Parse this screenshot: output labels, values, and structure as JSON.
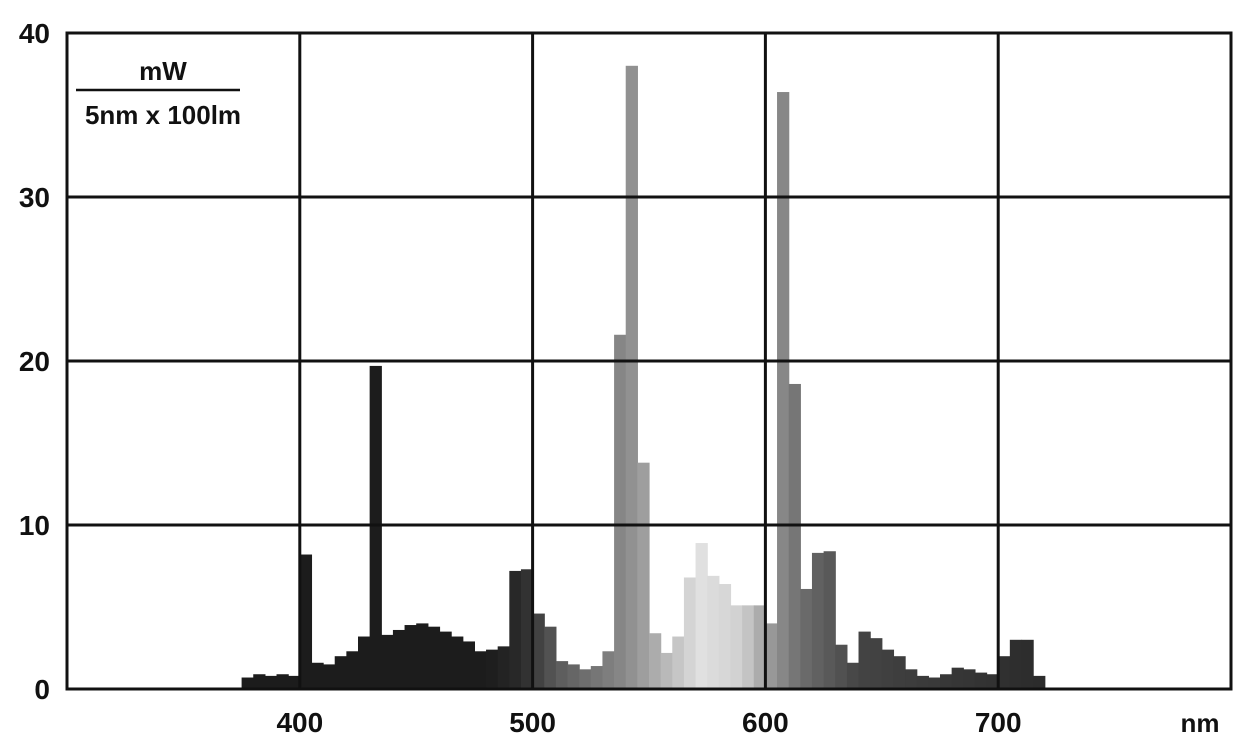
{
  "chart_data": {
    "type": "bar",
    "ylabel_numerator": "mW",
    "ylabel_denominator": "5nm x 100lm",
    "x_unit": "nm",
    "bin_width": 5,
    "xlim": [
      300,
      800
    ],
    "ylim": [
      0,
      40
    ],
    "x_ticks": [
      400,
      500,
      600,
      700
    ],
    "y_ticks": [
      0,
      10,
      20,
      30,
      40
    ],
    "grid": true,
    "legend": "none",
    "x": [
      375,
      380,
      385,
      390,
      395,
      400,
      405,
      410,
      415,
      420,
      425,
      430,
      435,
      440,
      445,
      450,
      455,
      460,
      465,
      470,
      475,
      480,
      485,
      490,
      495,
      500,
      505,
      510,
      515,
      520,
      525,
      530,
      535,
      540,
      545,
      550,
      555,
      560,
      565,
      570,
      575,
      580,
      585,
      590,
      595,
      600,
      605,
      610,
      615,
      620,
      625,
      630,
      635,
      640,
      645,
      650,
      655,
      660,
      665,
      670,
      675,
      680,
      685,
      690,
      695,
      700,
      705,
      710,
      715
    ],
    "values": [
      0.7,
      0.9,
      0.8,
      0.9,
      0.8,
      8.2,
      1.6,
      1.5,
      2.0,
      2.3,
      3.2,
      19.7,
      3.3,
      3.6,
      3.9,
      4.0,
      3.8,
      3.5,
      3.2,
      2.9,
      2.3,
      2.4,
      2.6,
      7.2,
      7.3,
      4.6,
      3.8,
      1.7,
      1.5,
      1.2,
      1.4,
      2.3,
      21.6,
      38.0,
      13.8,
      3.4,
      2.2,
      3.2,
      6.8,
      8.9,
      6.9,
      6.4,
      5.1,
      5.1,
      5.1,
      4.0,
      36.4,
      18.6,
      6.1,
      8.3,
      8.4,
      2.7,
      1.6,
      3.5,
      3.1,
      2.4,
      2.0,
      1.2,
      0.8,
      0.7,
      0.9,
      1.3,
      1.2,
      1.0,
      0.9,
      2.0,
      3.0,
      3.0,
      0.8
    ],
    "color_gradient": [
      "#1c1c1c",
      "#1c1c1c",
      "#2a2a2a",
      "#5a5a5a",
      "#8a8a8a",
      "#e0e0e0",
      "#d0d0d0",
      "#a0a0a0",
      "#6e6e6e",
      "#444444",
      "#2c2c2c"
    ],
    "color_gradient_stops_nm": [
      375,
      480,
      495,
      510,
      540,
      572,
      590,
      600,
      615,
      640,
      715
    ]
  }
}
